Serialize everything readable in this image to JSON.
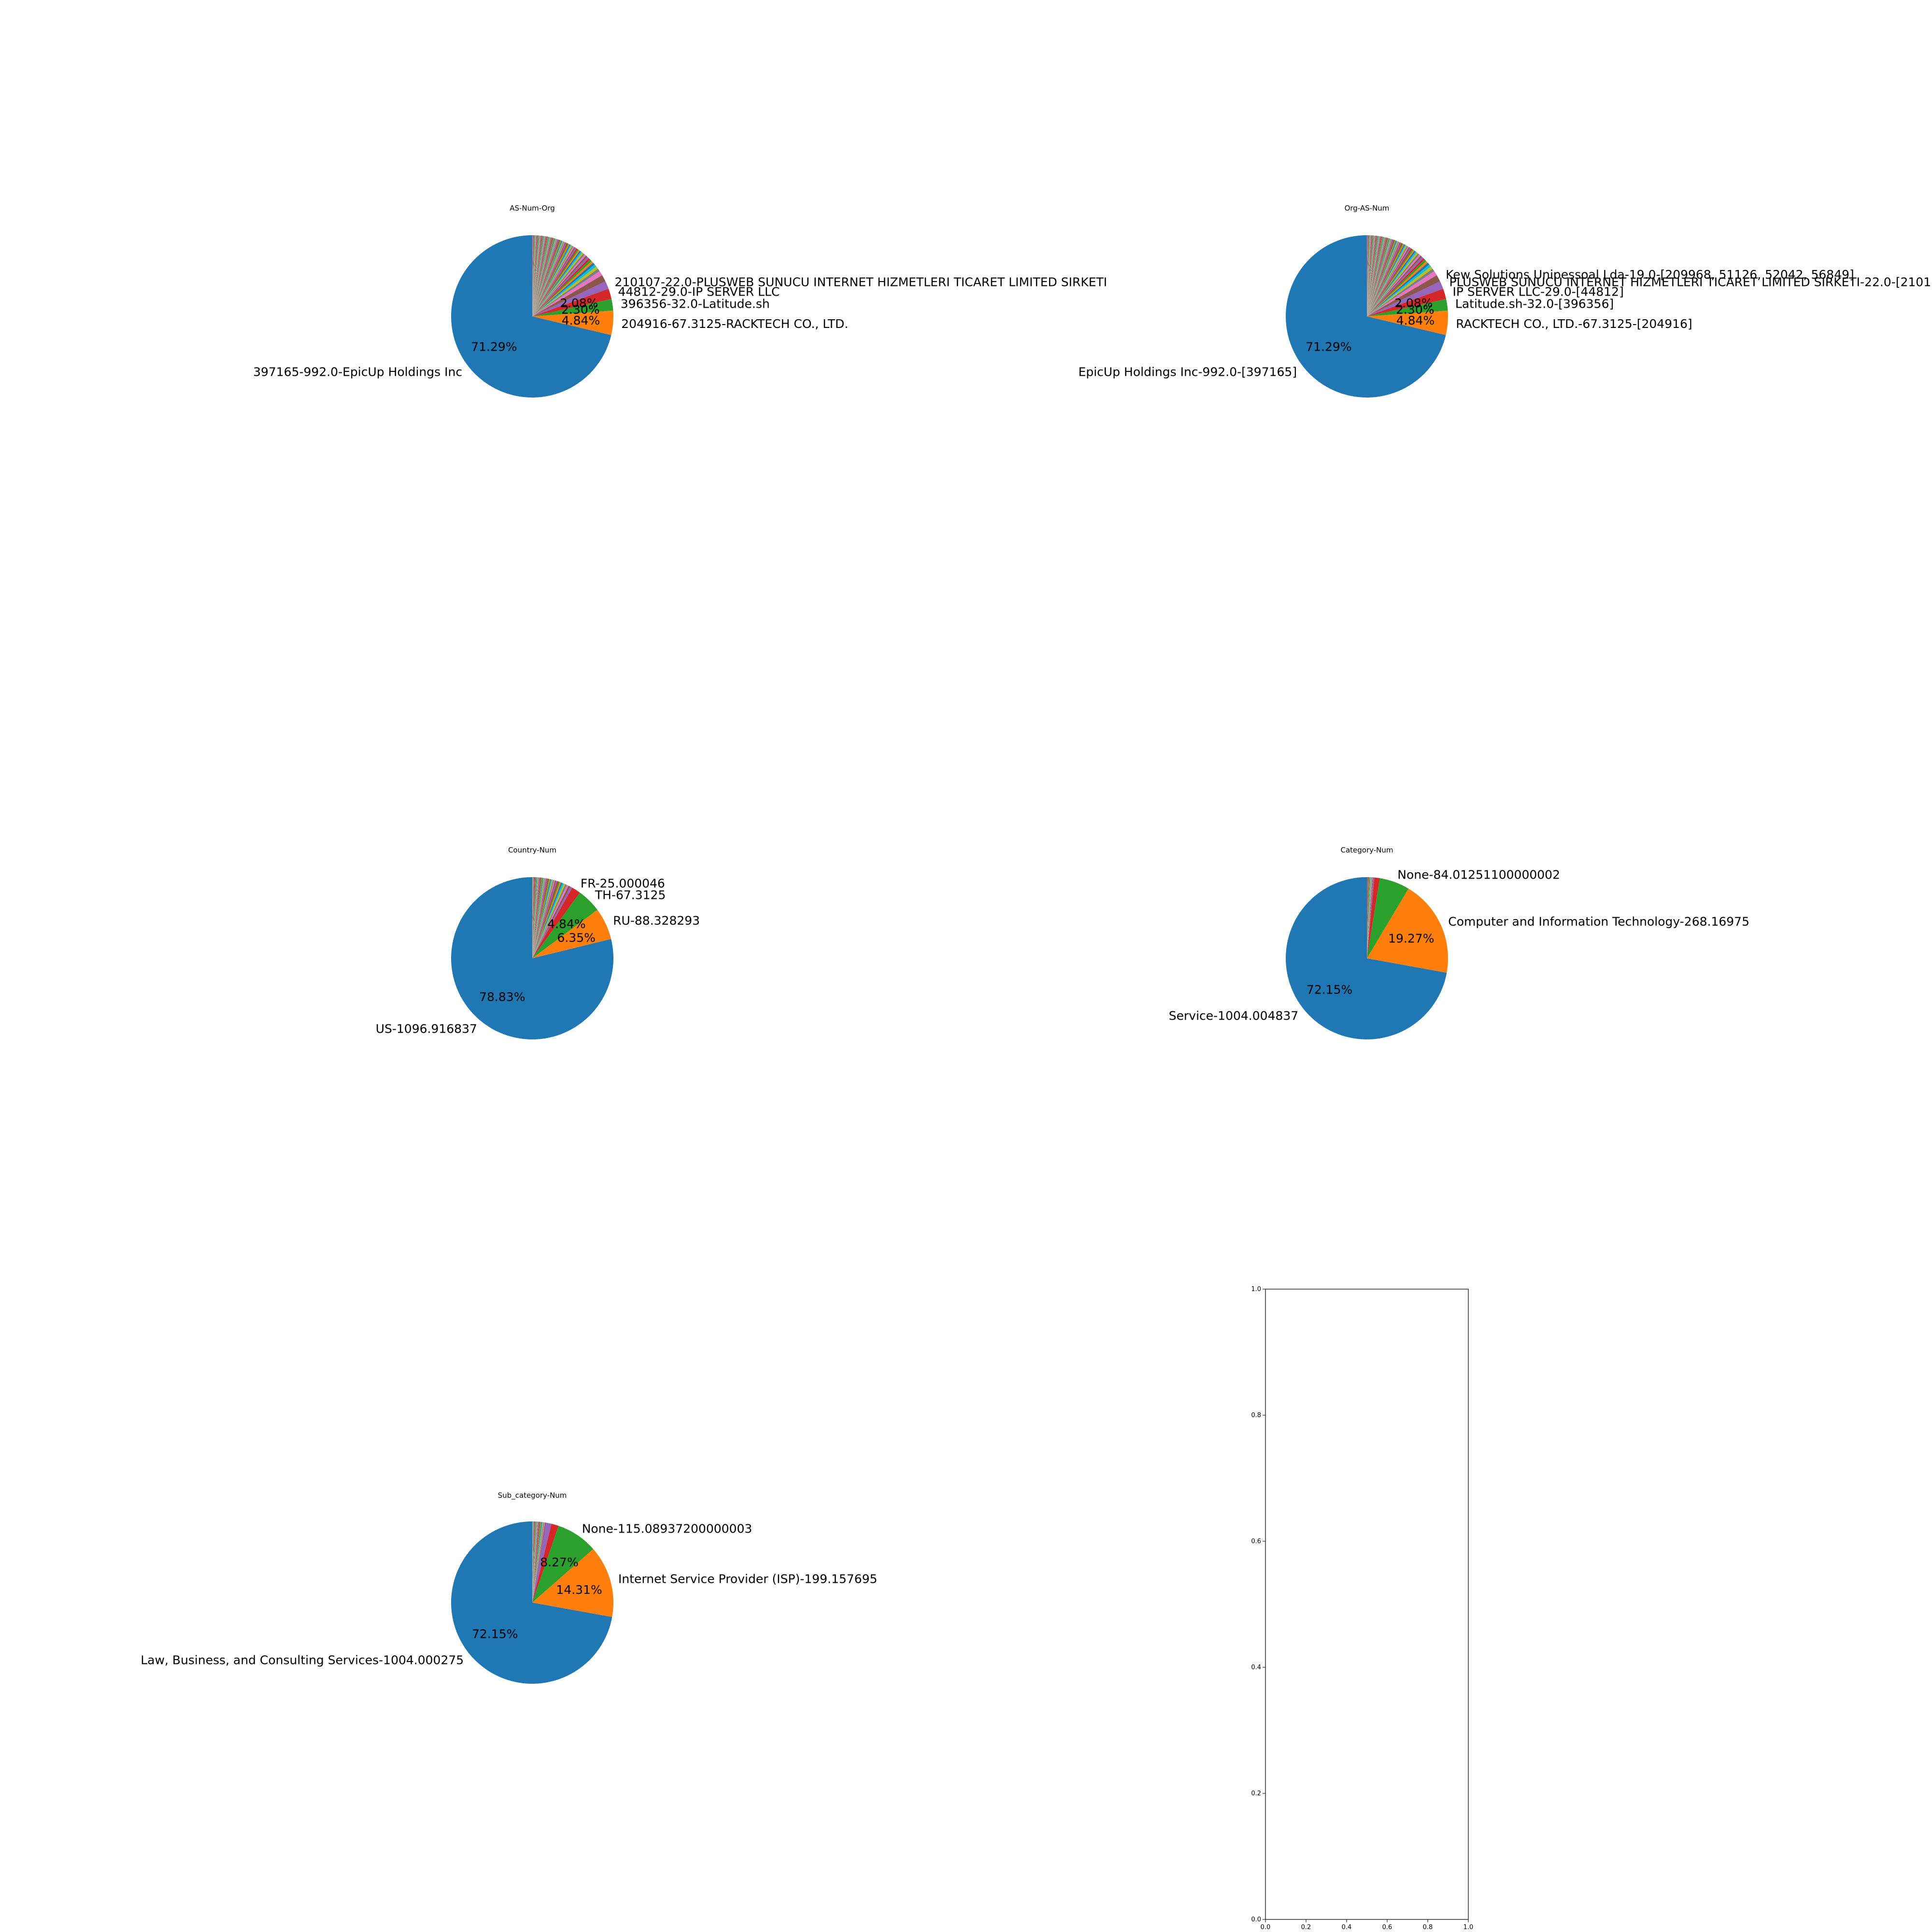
{
  "colors": {
    "cycle": [
      "#1f77b4",
      "#ff7f0e",
      "#2ca02c",
      "#d62728",
      "#9467bd",
      "#8c564b",
      "#e377c2",
      "#7f7f7f",
      "#bcbd22",
      "#17becf"
    ],
    "background": "#ffffff",
    "text": "#000000"
  },
  "chart_data": [
    {
      "type": "pie",
      "title": "AS-Num-Org",
      "start_angle": 90,
      "counterclock": true,
      "slices": [
        {
          "label": "397165-992.0-EpicUp Holdings Inc",
          "value": 992.0,
          "pct": "71.29%"
        },
        {
          "label": "204916-67.3125-RACKTECH CO., LTD.",
          "value": 67.3125,
          "pct": "4.84%"
        },
        {
          "label": "396356-32.0-Latitude.sh",
          "value": 32.0,
          "pct": "2.30%"
        },
        {
          "label": "44812-29.0-IP SERVER LLC",
          "value": 29.0,
          "pct": "2.08%"
        },
        {
          "label": "210107-22.0-PLUSWEB SUNUCU INTERNET HIZMETLERI TICARET LIMITED SIRKETI",
          "value": 22.0,
          "pct": ""
        },
        {
          "label": "",
          "value": 19.0,
          "pct": ""
        },
        {
          "label": "",
          "value": 13.0,
          "pct": ""
        }
      ],
      "small_slices": {
        "count": 90,
        "total": 217.0
      }
    },
    {
      "type": "pie",
      "title": "Org-AS-Num",
      "start_angle": 90,
      "counterclock": true,
      "slices": [
        {
          "label": "EpicUp Holdings Inc-992.0-[397165]",
          "value": 992.0,
          "pct": "71.29%"
        },
        {
          "label": "RACKTECH CO., LTD.-67.3125-[204916]",
          "value": 67.3125,
          "pct": "4.84%"
        },
        {
          "label": "Latitude.sh-32.0-[396356]",
          "value": 32.0,
          "pct": "2.30%"
        },
        {
          "label": "IP SERVER LLC-29.0-[44812]",
          "value": 29.0,
          "pct": "2.08%"
        },
        {
          "label": "PLUSWEB SUNUCU INTERNET HIZMETLERI TICARET LIMITED SIRKETI-22.0-[2101",
          "value": 22.0,
          "pct": ""
        },
        {
          "label": "Kew Solutions Unipessoal Lda-19.0-[209968, 51126, 52042, 56849]",
          "value": 19.0,
          "pct": ""
        },
        {
          "label": "",
          "value": 13.0,
          "pct": ""
        }
      ],
      "small_slices": {
        "count": 90,
        "total": 217.0
      }
    },
    {
      "type": "pie",
      "title": "Country-Num",
      "start_angle": 90,
      "counterclock": true,
      "slices": [
        {
          "label": "US-1096.916837",
          "value": 1096.916837,
          "pct": "78.83%"
        },
        {
          "label": "RU-88.328293",
          "value": 88.328293,
          "pct": "6.35%"
        },
        {
          "label": "TH-67.3125",
          "value": 67.3125,
          "pct": "4.84%"
        },
        {
          "label": "FR-25.000046",
          "value": 25.000046,
          "pct": ""
        }
      ],
      "small_slices": {
        "count": 45,
        "total": 114.0
      }
    },
    {
      "type": "pie",
      "title": "Category-Num",
      "start_angle": 90,
      "counterclock": true,
      "slices": [
        {
          "label": "Service-1004.004837",
          "value": 1004.004837,
          "pct": "72.15%"
        },
        {
          "label": "Computer and Information Technology-268.16975",
          "value": 268.16975,
          "pct": "19.27%"
        },
        {
          "label": "None-84.01251100000002",
          "value": 84.01251100000002,
          "pct": ""
        },
        {
          "label": "",
          "value": 15.0,
          "pct": ""
        }
      ],
      "small_slices": {
        "count": 12,
        "total": 20.4
      }
    },
    {
      "type": "pie",
      "title": "Sub_category-Num",
      "start_angle": 90,
      "counterclock": true,
      "slices": [
        {
          "label": "Law, Business, and Consulting Services-1004.000275",
          "value": 1004.000275,
          "pct": "72.15%"
        },
        {
          "label": "Internet Service Provider (ISP)-199.157695",
          "value": 199.157695,
          "pct": "14.31%"
        },
        {
          "label": "None-115.08937200000003",
          "value": 115.08937200000003,
          "pct": "8.27%"
        },
        {
          "label": "",
          "value": 20.0,
          "pct": ""
        },
        {
          "label": "",
          "value": 15.0,
          "pct": ""
        }
      ],
      "small_slices": {
        "count": 25,
        "total": 38.0
      }
    },
    {
      "type": "table",
      "title": "",
      "xlim": [
        0,
        1
      ],
      "ylim": [
        0,
        1
      ],
      "xticks": [
        "0.0",
        "0.2",
        "0.4",
        "0.6",
        "0.8",
        "1.0"
      ],
      "yticks": [
        "0.0",
        "0.2",
        "0.4",
        "0.6",
        "0.8",
        "1.0"
      ]
    }
  ]
}
